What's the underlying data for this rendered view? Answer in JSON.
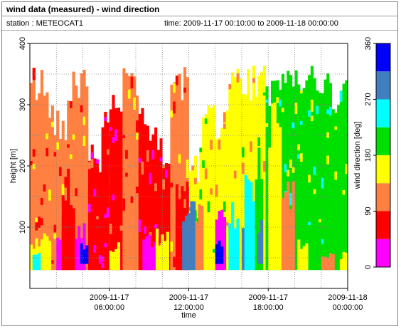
{
  "header": {
    "title": "wind data (measured) - wind direction",
    "station": "station : METEOCAT1",
    "time_range": "time: 2009-11-17 00:10:00 to 2009-11-18 00:00:00"
  },
  "chart_data": {
    "type": "heatmap",
    "xlabel": "time",
    "ylabel": "height [m]",
    "x_range_hours": [
      0,
      24
    ],
    "x_ticks": [
      {
        "hour": 6,
        "line1": "2009-11-17",
        "line2": "06:00:00"
      },
      {
        "hour": 12,
        "line1": "2009-11-17",
        "line2": "12:00:00"
      },
      {
        "hour": 18,
        "line1": "2009-11-17",
        "line2": "18:00:00"
      },
      {
        "hour": 24,
        "line1": "2009-11-18",
        "line2": "00:00:00"
      }
    ],
    "ylim": [
      0,
      400
    ],
    "y_ticks": [
      100,
      200,
      300,
      400
    ],
    "y_grid": [
      50,
      100,
      150,
      200,
      250,
      300,
      350
    ],
    "data_height_range": [
      30,
      365
    ],
    "grid": true,
    "colorbar": {
      "label": "wind direction [deg]",
      "range": [
        0,
        360
      ],
      "ticks": [
        0,
        90,
        180,
        270,
        360
      ],
      "bins": [
        {
          "from": 0,
          "to": 45,
          "color": "#ff00ff"
        },
        {
          "from": 45,
          "to": 90,
          "color": "#ff0000"
        },
        {
          "from": 90,
          "to": 135,
          "color": "#ff8040"
        },
        {
          "from": 135,
          "to": 180,
          "color": "#ffff00"
        },
        {
          "from": 180,
          "to": 225,
          "color": "#00e000"
        },
        {
          "from": 225,
          "to": 270,
          "color": "#00ffff"
        },
        {
          "from": 270,
          "to": 315,
          "color": "#4080c0"
        },
        {
          "from": 315,
          "to": 360,
          "color": "#0000ff"
        }
      ]
    },
    "segments": [
      {
        "start": 0.0,
        "end": 1.5,
        "top": 365,
        "dir": 112
      },
      {
        "start": 1.5,
        "end": 2.8,
        "top": 300,
        "dir": 112
      },
      {
        "start": 2.8,
        "end": 4.5,
        "top": 365,
        "dir": 112
      },
      {
        "start": 4.5,
        "end": 5.5,
        "top": 240,
        "dir": 67
      },
      {
        "start": 5.5,
        "end": 7.0,
        "top": 320,
        "dir": 67
      },
      {
        "start": 7.0,
        "end": 8.3,
        "top": 365,
        "dir": 112
      },
      {
        "start": 8.3,
        "end": 9.5,
        "top": 300,
        "dir": 67
      },
      {
        "start": 9.5,
        "end": 10.5,
        "top": 250,
        "dir": 67
      },
      {
        "start": 10.5,
        "end": 12.0,
        "top": 365,
        "dir": 112
      },
      {
        "start": 12.0,
        "end": 13.0,
        "top": 230,
        "dir": 157
      },
      {
        "start": 13.0,
        "end": 15.0,
        "top": 300,
        "dir": 157
      },
      {
        "start": 15.0,
        "end": 16.5,
        "top": 365,
        "dir": 157
      },
      {
        "start": 16.5,
        "end": 17.8,
        "top": 365,
        "dir": 157
      },
      {
        "start": 17.8,
        "end": 19.0,
        "top": 340,
        "dir": 202
      },
      {
        "start": 19.0,
        "end": 20.5,
        "top": 365,
        "dir": 202
      },
      {
        "start": 20.5,
        "end": 22.5,
        "top": 365,
        "dir": 202
      },
      {
        "start": 22.5,
        "end": 24.0,
        "top": 340,
        "dir": 202
      }
    ],
    "patches": [
      {
        "start": 0.0,
        "end": 1.5,
        "low": 30,
        "high": 90,
        "dir": 157
      },
      {
        "start": 0.2,
        "end": 0.8,
        "low": 30,
        "high": 60,
        "dir": 247
      },
      {
        "start": 2.0,
        "end": 2.8,
        "low": 30,
        "high": 120,
        "dir": 22
      },
      {
        "start": 2.4,
        "end": 3.4,
        "low": 30,
        "high": 200,
        "dir": 67
      },
      {
        "start": 3.4,
        "end": 4.2,
        "low": 30,
        "high": 110,
        "dir": 22
      },
      {
        "start": 3.8,
        "end": 4.4,
        "low": 40,
        "high": 80,
        "dir": 337
      },
      {
        "start": 6.0,
        "end": 6.8,
        "low": 30,
        "high": 80,
        "dir": 157
      },
      {
        "start": 8.5,
        "end": 9.5,
        "low": 30,
        "high": 90,
        "dir": 22
      },
      {
        "start": 9.5,
        "end": 10.5,
        "low": 30,
        "high": 100,
        "dir": 157
      },
      {
        "start": 11.0,
        "end": 12.0,
        "low": 30,
        "high": 190,
        "dir": 67
      },
      {
        "start": 11.5,
        "end": 12.5,
        "low": 30,
        "high": 150,
        "dir": 292
      },
      {
        "start": 12.5,
        "end": 13.0,
        "low": 30,
        "high": 140,
        "dir": 112
      },
      {
        "start": 14.0,
        "end": 14.8,
        "low": 30,
        "high": 130,
        "dir": 22
      },
      {
        "start": 14.0,
        "end": 14.6,
        "low": 40,
        "high": 90,
        "dir": 337
      },
      {
        "start": 15.0,
        "end": 15.8,
        "low": 30,
        "high": 150,
        "dir": 247
      },
      {
        "start": 16.0,
        "end": 16.6,
        "low": 30,
        "high": 120,
        "dir": 292
      },
      {
        "start": 16.2,
        "end": 17.0,
        "low": 30,
        "high": 200,
        "dir": 247
      },
      {
        "start": 17.0,
        "end": 17.6,
        "low": 30,
        "high": 260,
        "dir": 202
      },
      {
        "start": 17.2,
        "end": 17.6,
        "low": 40,
        "high": 130,
        "dir": 292
      },
      {
        "start": 18.0,
        "end": 19.0,
        "low": 30,
        "high": 360,
        "dir": 157
      },
      {
        "start": 19.0,
        "end": 20.0,
        "low": 30,
        "high": 200,
        "dir": 112
      },
      {
        "start": 20.2,
        "end": 21.0,
        "low": 30,
        "high": 80,
        "dir": 157
      },
      {
        "start": 22.0,
        "end": 23.0,
        "low": 30,
        "high": 60,
        "dir": 112
      },
      {
        "start": 23.4,
        "end": 24.0,
        "low": 30,
        "high": 60,
        "dir": 157
      }
    ]
  }
}
